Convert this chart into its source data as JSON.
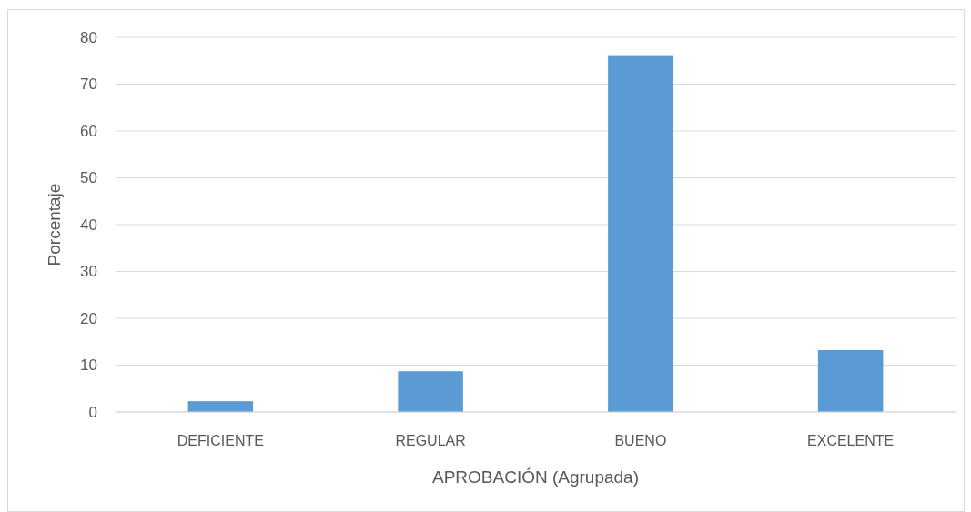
{
  "chart_data": {
    "type": "bar",
    "xlabel": "APROBACIÓN (Agrupada)",
    "ylabel": "Porcentaje",
    "categories": [
      "DEFICIENTE",
      "REGULAR",
      "BUENO",
      "EXCELENTE"
    ],
    "values": [
      2.3,
      8.7,
      76,
      13.2
    ],
    "color": "#5b9bd5",
    "ylim": [
      0,
      80
    ],
    "yticks": [
      0,
      10,
      20,
      30,
      40,
      50,
      60,
      70,
      80
    ],
    "grid": "y"
  }
}
